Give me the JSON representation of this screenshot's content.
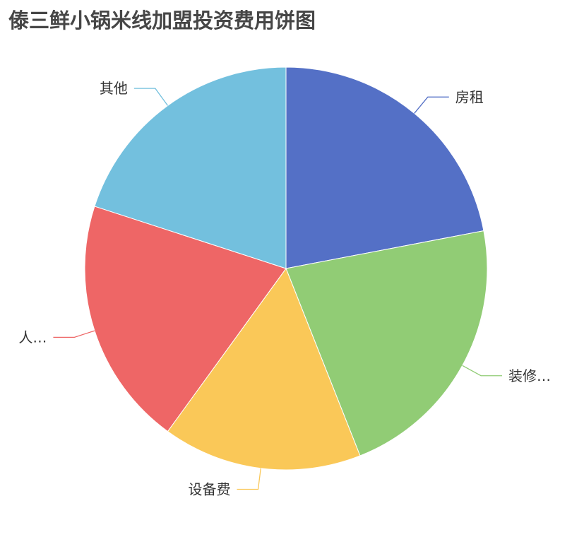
{
  "chart_data": {
    "type": "pie",
    "title": "傣三鲜小锅米线加盟投资费用饼图",
    "start_angle": "top",
    "direction": "clockwise",
    "slices": [
      {
        "label": "房租",
        "value": 22,
        "color": "#5470c6"
      },
      {
        "label": "装修…",
        "value": 22,
        "color": "#91cc75"
      },
      {
        "label": "设备费",
        "value": 16,
        "color": "#fac858"
      },
      {
        "label": "人…",
        "value": 20,
        "color": "#ee6666"
      },
      {
        "label": "其他",
        "value": 20,
        "color": "#73c0de"
      }
    ],
    "label_color": "#333333"
  }
}
